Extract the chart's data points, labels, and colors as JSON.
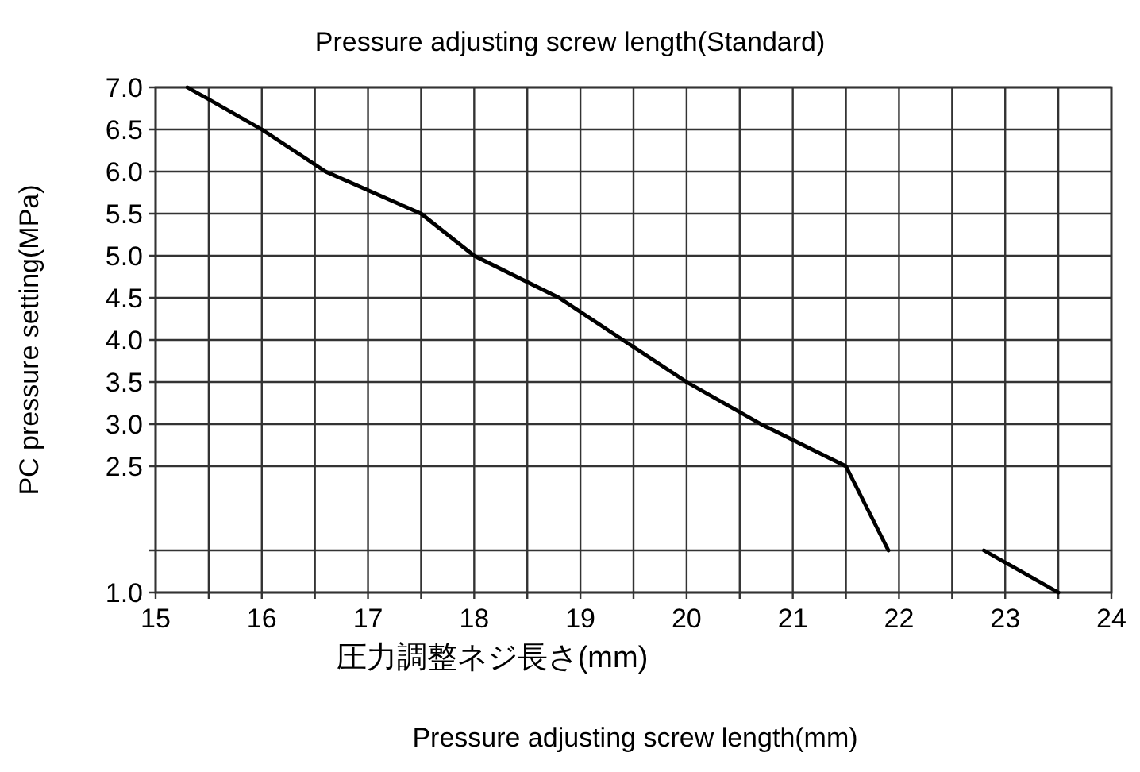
{
  "chart_data": {
    "type": "line",
    "title": "Pressure adjusting screw length(Standard)",
    "xlabel": "圧力調整ネジ長さ(mm)",
    "ylabel": "PC pressure setting(MPa)",
    "annotations": [
      "Pressure adjusting screw length(mm)"
    ],
    "xlim": [
      15,
      24
    ],
    "xticks": [
      15,
      {
        "value": 15.5,
        "label": null
      },
      16,
      {
        "value": 16.5,
        "label": null
      },
      17,
      {
        "value": 17.5,
        "label": null
      },
      18,
      {
        "value": 18.5,
        "label": null
      },
      19,
      {
        "value": 19.5,
        "label": null
      },
      20,
      {
        "value": 20.5,
        "label": null
      },
      21,
      {
        "value": 21.5,
        "label": null
      },
      22,
      {
        "value": 22.5,
        "label": null
      },
      23,
      {
        "value": 23.5,
        "label": null
      },
      24
    ],
    "ylim": [
      1.0,
      7.0
    ],
    "yticks": [
      {
        "value": 1.0,
        "label": "1.0"
      },
      {
        "value": 1.5,
        "label": null
      },
      {
        "value": 2.5,
        "label": "2.5"
      },
      {
        "value": 3.0,
        "label": "3.0"
      },
      {
        "value": 3.5,
        "label": "3.5"
      },
      {
        "value": 4.0,
        "label": "4.0"
      },
      {
        "value": 4.5,
        "label": "4.5"
      },
      {
        "value": 5.0,
        "label": "5.0"
      },
      {
        "value": 5.5,
        "label": "5.5"
      },
      {
        "value": 6.0,
        "label": "6.0"
      },
      {
        "value": 6.5,
        "label": "6.5"
      },
      {
        "value": 7.0,
        "label": "7.0"
      }
    ],
    "grid": true,
    "series": [
      {
        "color": "#000000",
        "x": [
          15.3,
          16.0,
          16.6,
          17.5,
          18.0,
          18.8,
          19.4,
          20.0,
          20.7,
          21.5,
          21.9
        ],
        "values": [
          7.0,
          6.5,
          6.0,
          5.5,
          5.0,
          4.5,
          4.0,
          3.5,
          3.0,
          2.5,
          1.5
        ]
      },
      {
        "color": "#000000",
        "x": [
          22.8,
          23.5
        ],
        "values": [
          1.5,
          1.0
        ]
      }
    ]
  }
}
